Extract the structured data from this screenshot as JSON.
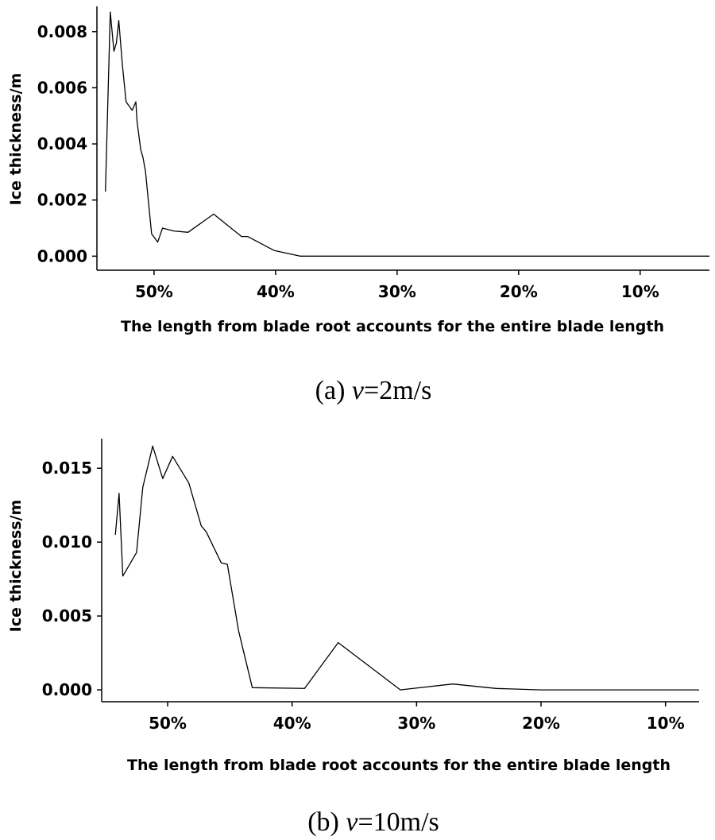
{
  "chart_data": [
    {
      "type": "line",
      "panel": "a",
      "caption_prefix": "(a) ",
      "caption_var": "v",
      "caption_suffix": "=2m/s",
      "xlabel": "The length from blade root accounts for the entire blade length",
      "ylabel": "Ice thickness/m",
      "x_reversed": true,
      "xlim": [
        54.7,
        4.3
      ],
      "ylim": [
        -0.0005,
        0.0089
      ],
      "xticks": [
        {
          "value": 50,
          "label": "50%"
        },
        {
          "value": 40,
          "label": "40%"
        },
        {
          "value": 30,
          "label": "30%"
        },
        {
          "value": 20,
          "label": "20%"
        },
        {
          "value": 10,
          "label": "10%"
        }
      ],
      "yticks": [
        {
          "value": 0.0,
          "label": "0.000"
        },
        {
          "value": 0.002,
          "label": "0.002"
        },
        {
          "value": 0.004,
          "label": "0.004"
        },
        {
          "value": 0.006,
          "label": "0.006"
        },
        {
          "value": 0.008,
          "label": "0.008"
        }
      ],
      "grid": false,
      "x": [
        54.0,
        53.6,
        53.3,
        53.1,
        52.9,
        52.6,
        52.3,
        51.8,
        51.5,
        51.4,
        51.1,
        50.9,
        50.7,
        50.2,
        49.7,
        49.3,
        48.4,
        47.2,
        45.1,
        42.8,
        42.3,
        40.1,
        38.0,
        37.0,
        25.0,
        10.0,
        4.3
      ],
      "series": [
        {
          "values": [
            0.0023,
            0.0087,
            0.0073,
            0.0076,
            0.0084,
            0.0068,
            0.0055,
            0.0052,
            0.0055,
            0.0048,
            0.0038,
            0.0035,
            0.003,
            0.0008,
            0.0005,
            0.001,
            0.0009,
            0.00085,
            0.0015,
            0.0007,
            0.0007,
            0.0002,
            0.0,
            0.0,
            0.0,
            0.0,
            0.0
          ]
        }
      ]
    },
    {
      "type": "line",
      "panel": "b",
      "caption_prefix": "(b) ",
      "caption_var": "v",
      "caption_suffix": "=10m/s",
      "xlabel": "The length from blade root accounts for the entire blade length",
      "ylabel": "Ice thickness/m",
      "x_reversed": true,
      "xlim": [
        55.3,
        7.3
      ],
      "ylim": [
        -0.0008,
        0.017
      ],
      "xticks": [
        {
          "value": 50,
          "label": "50%"
        },
        {
          "value": 40,
          "label": "40%"
        },
        {
          "value": 30,
          "label": "30%"
        },
        {
          "value": 20,
          "label": "20%"
        },
        {
          "value": 10,
          "label": "10%"
        }
      ],
      "yticks": [
        {
          "value": 0.0,
          "label": "0.000"
        },
        {
          "value": 0.005,
          "label": "0.005"
        },
        {
          "value": 0.01,
          "label": "0.010"
        },
        {
          "value": 0.015,
          "label": "0.015"
        }
      ],
      "grid": false,
      "x": [
        54.2,
        53.9,
        53.6,
        52.5,
        52.0,
        51.2,
        50.4,
        49.6,
        48.3,
        47.3,
        46.9,
        45.7,
        45.2,
        44.3,
        43.2,
        39.0,
        36.3,
        31.3,
        27.1,
        23.6,
        20.0,
        15.0,
        7.3
      ],
      "series": [
        {
          "values": [
            0.0105,
            0.0133,
            0.0077,
            0.0093,
            0.0137,
            0.0165,
            0.0143,
            0.0158,
            0.014,
            0.0111,
            0.0107,
            0.0086,
            0.0085,
            0.004,
            0.00015,
            0.0001,
            0.0032,
            0.0,
            0.0004,
            0.0001,
            0.0,
            0.0,
            0.0
          ]
        }
      ]
    }
  ]
}
